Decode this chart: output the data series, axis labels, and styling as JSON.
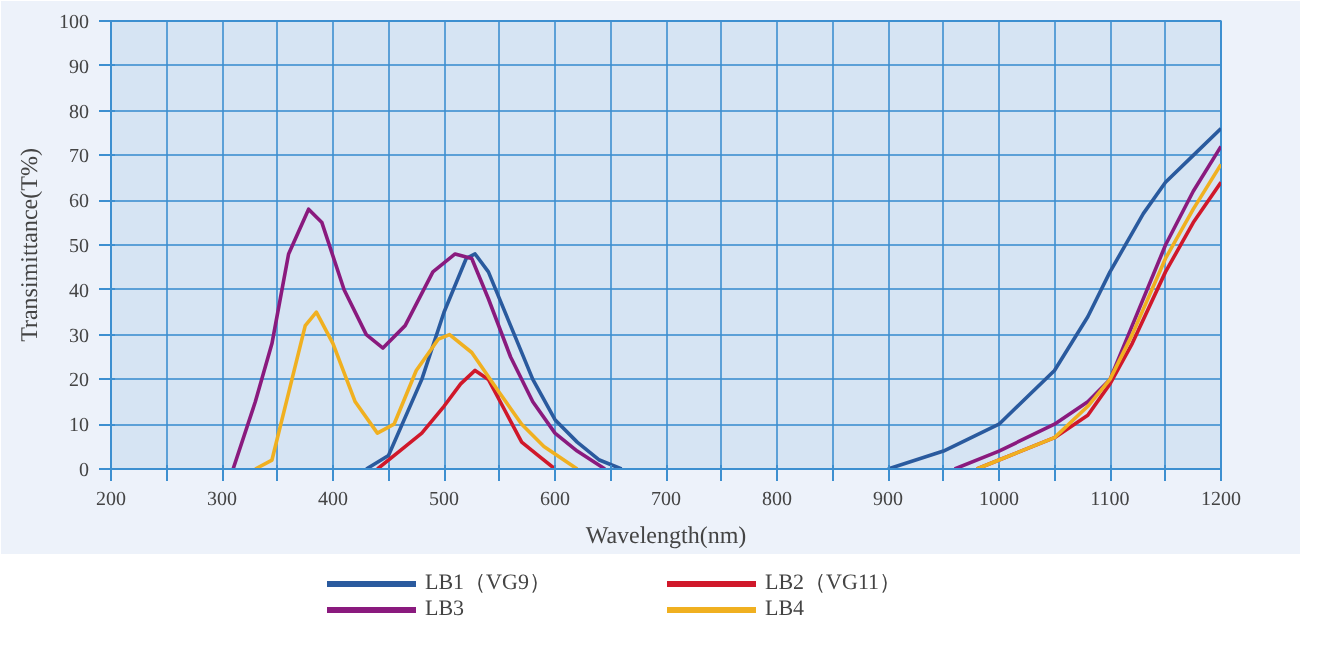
{
  "chart_data": {
    "type": "line",
    "xlabel": "Wavelength(nm)",
    "ylabel": "Transimittance(T%)",
    "xlim": [
      200,
      1200
    ],
    "ylim": [
      0,
      100
    ],
    "xticks": [
      200,
      {
        "value": 250,
        "label": null
      },
      300,
      {
        "value": 350,
        "label": null
      },
      400,
      {
        "value": 450,
        "label": null
      },
      500,
      {
        "value": 550,
        "label": null
      },
      600,
      {
        "value": 650,
        "label": null
      },
      700,
      {
        "value": 750,
        "label": null
      },
      800,
      {
        "value": 850,
        "label": null
      },
      900,
      {
        "value": 950,
        "label": null
      },
      1000,
      {
        "value": 1050,
        "label": null
      },
      1100,
      {
        "value": 1150,
        "label": null
      },
      1200
    ],
    "yticks": [
      0,
      10,
      20,
      30,
      40,
      50,
      60,
      70,
      80,
      90,
      100
    ],
    "grid": true,
    "legend": "bottom",
    "line_style": "solid",
    "series": [
      {
        "name": "LB1（VG9）",
        "color": "#2a5a9e",
        "x": [
          430,
          450,
          480,
          500,
          520,
          528,
          540,
          560,
          580,
          600,
          620,
          640,
          660,
          null,
          900,
          950,
          1000,
          1050,
          1080,
          1100,
          1130,
          1150,
          1175,
          1200
        ],
        "values": [
          0,
          3,
          20,
          35,
          47,
          48,
          44,
          32,
          20,
          11,
          6,
          2,
          0,
          null,
          0,
          4,
          10,
          22,
          34,
          44,
          57,
          64,
          70,
          76
        ]
      },
      {
        "name": "LB2（VG11）",
        "color": "#d0182a",
        "x": [
          440,
          460,
          480,
          500,
          515,
          528,
          540,
          555,
          570,
          585,
          600,
          null,
          980,
          1000,
          1050,
          1080,
          1100,
          1120,
          1150,
          1175,
          1200
        ],
        "values": [
          0,
          4,
          8,
          14,
          19,
          22,
          20,
          13,
          6,
          3,
          0,
          null,
          0,
          2,
          7,
          12,
          19,
          28,
          44,
          55,
          64
        ]
      },
      {
        "name": "LB3",
        "color": "#8a1a7e",
        "x": [
          310,
          330,
          345,
          360,
          378,
          390,
          410,
          430,
          445,
          465,
          490,
          510,
          525,
          540,
          560,
          580,
          600,
          620,
          645,
          null,
          960,
          1000,
          1050,
          1080,
          1100,
          1120,
          1150,
          1175,
          1200
        ],
        "values": [
          0,
          15,
          28,
          48,
          58,
          55,
          40,
          30,
          27,
          32,
          44,
          48,
          47,
          38,
          25,
          15,
          8,
          4,
          0,
          null,
          0,
          4,
          10,
          15,
          20,
          32,
          50,
          62,
          72
        ]
      },
      {
        "name": "LB4",
        "color": "#f0b020",
        "x": [
          330,
          345,
          360,
          375,
          385,
          400,
          420,
          440,
          455,
          475,
          495,
          505,
          525,
          550,
          570,
          590,
          620,
          null,
          980,
          1000,
          1050,
          1080,
          1100,
          1120,
          1150,
          1175,
          1200
        ],
        "values": [
          0,
          2,
          17,
          32,
          35,
          28,
          15,
          8,
          10,
          22,
          29,
          30,
          26,
          17,
          10,
          5,
          0,
          null,
          0,
          2,
          7,
          14,
          20,
          30,
          47,
          58,
          68
        ]
      }
    ]
  }
}
